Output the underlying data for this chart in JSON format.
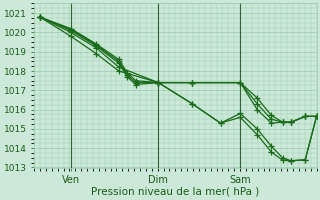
{
  "title": "",
  "xlabel": "Pression niveau de la mer( hPa )",
  "ylabel": "",
  "bg_color": "#cce8d8",
  "grid_color": "#99ccaa",
  "line_color": "#1a6b1a",
  "marker_color": "#1a6b1a",
  "ylim": [
    1013,
    1021.5
  ],
  "yticks": [
    1013,
    1014,
    1015,
    1016,
    1017,
    1018,
    1019,
    1020,
    1021
  ],
  "xtick_labels": [
    "Ven",
    "Dim",
    "Sam"
  ],
  "vline_x": [
    0.13,
    0.44,
    0.73
  ],
  "series": [
    {
      "x": [
        0.02,
        0.13,
        0.22,
        0.3,
        0.44,
        0.56,
        0.66,
        0.73,
        0.79,
        0.84,
        0.88,
        0.91,
        0.96,
        1.0
      ],
      "y": [
        1020.8,
        1019.8,
        1018.9,
        1018.0,
        1017.4,
        1016.3,
        1015.3,
        1015.8,
        1015.0,
        1014.1,
        1013.5,
        1013.35,
        1013.4,
        1015.65
      ]
    },
    {
      "x": [
        0.02,
        0.13,
        0.22,
        0.3,
        0.44,
        0.56,
        0.66,
        0.73,
        0.79,
        0.84,
        0.88,
        0.91,
        0.96,
        1.0
      ],
      "y": [
        1020.8,
        1020.0,
        1019.2,
        1018.2,
        1017.4,
        1016.3,
        1015.3,
        1015.6,
        1014.7,
        1013.8,
        1013.38,
        1013.35,
        1013.4,
        1015.65
      ]
    },
    {
      "x": [
        0.02,
        0.13,
        0.22,
        0.3,
        0.33,
        0.36,
        0.44,
        0.56,
        0.73,
        0.79,
        0.84,
        0.88,
        0.91,
        0.96,
        1.0
      ],
      "y": [
        1020.8,
        1020.1,
        1019.3,
        1018.4,
        1017.7,
        1017.3,
        1017.4,
        1017.4,
        1017.4,
        1016.6,
        1015.7,
        1015.35,
        1015.35,
        1015.65,
        1015.65
      ]
    },
    {
      "x": [
        0.02,
        0.13,
        0.22,
        0.3,
        0.33,
        0.36,
        0.44,
        0.56,
        0.73,
        0.79,
        0.84,
        0.88,
        0.91,
        0.96,
        1.0
      ],
      "y": [
        1020.8,
        1020.15,
        1019.35,
        1018.5,
        1017.8,
        1017.4,
        1017.4,
        1017.4,
        1017.4,
        1016.3,
        1015.5,
        1015.35,
        1015.35,
        1015.65,
        1015.65
      ]
    },
    {
      "x": [
        0.02,
        0.13,
        0.22,
        0.3,
        0.33,
        0.36,
        0.44,
        0.56,
        0.73,
        0.79,
        0.84,
        0.88,
        0.91,
        0.96,
        1.0
      ],
      "y": [
        1020.8,
        1020.2,
        1019.4,
        1018.6,
        1017.9,
        1017.5,
        1017.4,
        1017.4,
        1017.4,
        1016.0,
        1015.3,
        1015.35,
        1015.35,
        1015.65,
        1015.65
      ]
    }
  ]
}
